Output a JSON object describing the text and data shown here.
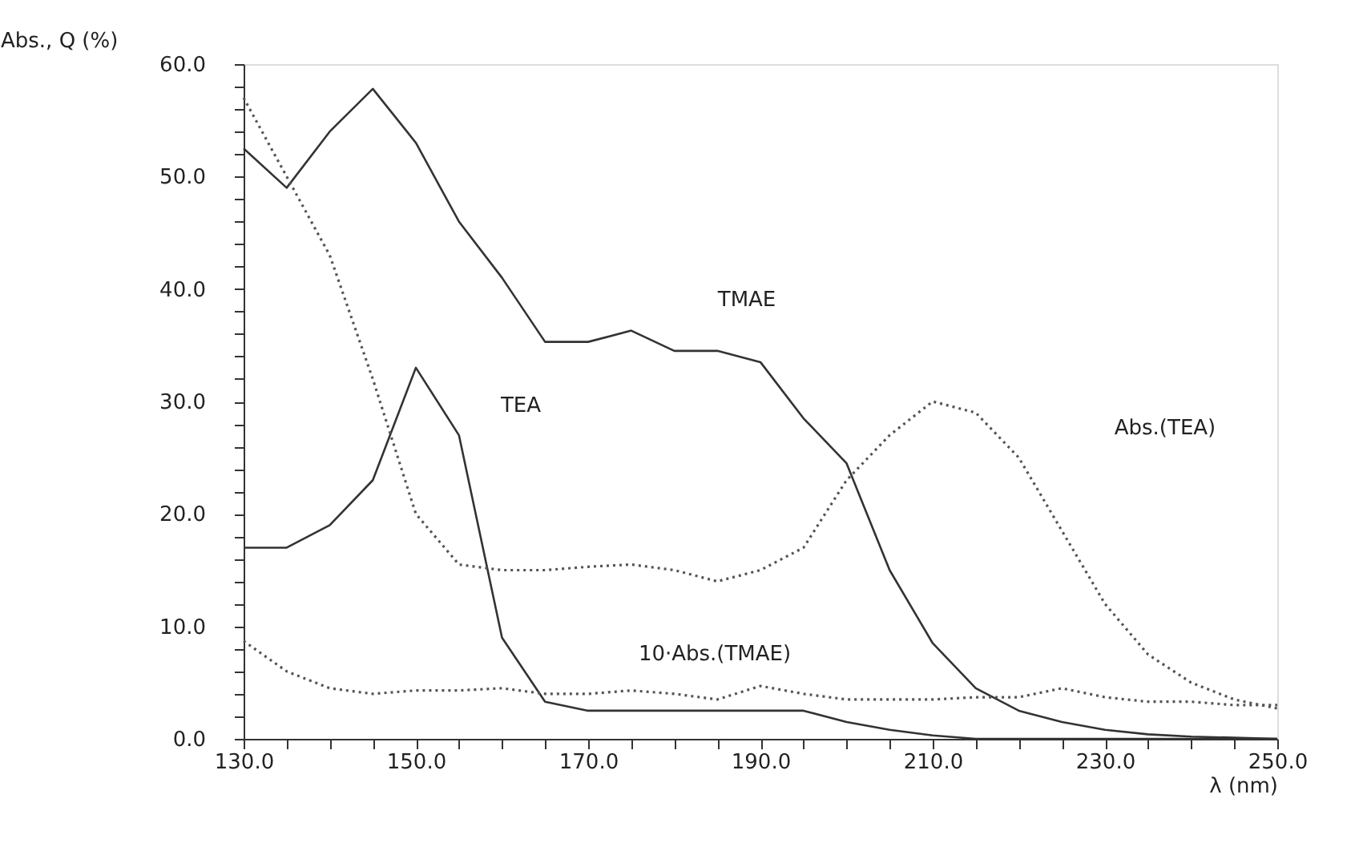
{
  "chart_data": {
    "type": "line",
    "xlabel": "λ (nm)",
    "ylabel": "Abs., Q (%)",
    "x": [
      130,
      135,
      140,
      145,
      150,
      155,
      160,
      165,
      170,
      175,
      180,
      185,
      190,
      195,
      200,
      205,
      210,
      215,
      220,
      225,
      230,
      235,
      240,
      245,
      250
    ],
    "series": [
      {
        "color": "#333333",
        "line_style": "solid",
        "values": [
          52.5,
          49,
          54,
          57.8,
          53,
          46,
          41,
          35.3,
          35.3,
          36.3,
          34.5,
          34.5,
          33.5,
          28.5,
          24.5,
          15,
          8.5,
          4.5,
          2.5,
          1.5,
          0.8,
          0.4,
          0.2,
          0.1,
          0
        ]
      },
      {
        "color": "#333333",
        "line_style": "solid",
        "values": [
          17,
          17,
          19,
          23,
          33,
          27,
          9,
          3.3,
          2.5,
          2.5,
          2.5,
          2.5,
          2.5,
          2.5,
          1.5,
          0.8,
          0.3,
          0,
          0,
          0,
          0,
          0,
          0,
          0,
          0
        ]
      },
      {
        "color": "#555555",
        "line_style": "dotted",
        "values": [
          57,
          50,
          43,
          32,
          20,
          15.5,
          15,
          15,
          15.3,
          15.5,
          15,
          14,
          15,
          17,
          23,
          27,
          30,
          29,
          25,
          18.5,
          12,
          7.5,
          5,
          3.5,
          2.7
        ]
      },
      {
        "color": "#555555",
        "line_style": "dotted",
        "values": [
          8.7,
          6,
          4.5,
          4,
          4.3,
          4.3,
          4.5,
          4,
          4,
          4.3,
          4,
          3.5,
          4.7,
          4,
          3.5,
          3.5,
          3.5,
          3.7,
          3.7,
          4.5,
          3.7,
          3.3,
          3.3,
          3,
          3
        ]
      }
    ],
    "annotations": [
      "TMAE",
      "TEA",
      "Abs.(TEA)",
      "10·Abs.(TMAE)"
    ],
    "xlim": [
      130,
      250
    ],
    "xticks": [
      {
        "value": 130,
        "label": "130.0"
      },
      {
        "value": 135,
        "label": null
      },
      {
        "value": 140,
        "label": null
      },
      {
        "value": 145,
        "label": null
      },
      {
        "value": 150,
        "label": "150.0"
      },
      {
        "value": 155,
        "label": null
      },
      {
        "value": 160,
        "label": null
      },
      {
        "value": 165,
        "label": null
      },
      {
        "value": 170,
        "label": "170.0"
      },
      {
        "value": 175,
        "label": null
      },
      {
        "value": 180,
        "label": null
      },
      {
        "value": 185,
        "label": null
      },
      {
        "value": 190,
        "label": "190.0"
      },
      {
        "value": 195,
        "label": null
      },
      {
        "value": 200,
        "label": null
      },
      {
        "value": 205,
        "label": null
      },
      {
        "value": 210,
        "label": "210.0"
      },
      {
        "value": 215,
        "label": null
      },
      {
        "value": 220,
        "label": null
      },
      {
        "value": 225,
        "label": null
      },
      {
        "value": 230,
        "label": "230.0"
      },
      {
        "value": 235,
        "label": null
      },
      {
        "value": 240,
        "label": null
      },
      {
        "value": 245,
        "label": null
      },
      {
        "value": 250,
        "label": "250.0"
      }
    ],
    "ylim": [
      0,
      60
    ],
    "yticks": [
      {
        "value": 0,
        "label": "0.0"
      },
      {
        "value": 2,
        "label": null
      },
      {
        "value": 4,
        "label": null
      },
      {
        "value": 6,
        "label": null
      },
      {
        "value": 8,
        "label": null
      },
      {
        "value": 10,
        "label": "10.0"
      },
      {
        "value": 12,
        "label": null
      },
      {
        "value": 14,
        "label": null
      },
      {
        "value": 16,
        "label": null
      },
      {
        "value": 18,
        "label": null
      },
      {
        "value": 20,
        "label": "20.0"
      },
      {
        "value": 22,
        "label": null
      },
      {
        "value": 24,
        "label": null
      },
      {
        "value": 26,
        "label": null
      },
      {
        "value": 28,
        "label": null
      },
      {
        "value": 30,
        "label": "30.0"
      },
      {
        "value": 32,
        "label": null
      },
      {
        "value": 34,
        "label": null
      },
      {
        "value": 36,
        "label": null
      },
      {
        "value": 38,
        "label": null
      },
      {
        "value": 40,
        "label": "40.0"
      },
      {
        "value": 42,
        "label": null
      },
      {
        "value": 44,
        "label": null
      },
      {
        "value": 46,
        "label": null
      },
      {
        "value": 48,
        "label": null
      },
      {
        "value": 50,
        "label": "50.0"
      },
      {
        "value": 52,
        "label": null
      },
      {
        "value": 54,
        "label": null
      },
      {
        "value": 56,
        "label": null
      },
      {
        "value": 58,
        "label": null
      },
      {
        "value": 60,
        "label": "60.0"
      }
    ],
    "grid": false,
    "marker": "none"
  }
}
